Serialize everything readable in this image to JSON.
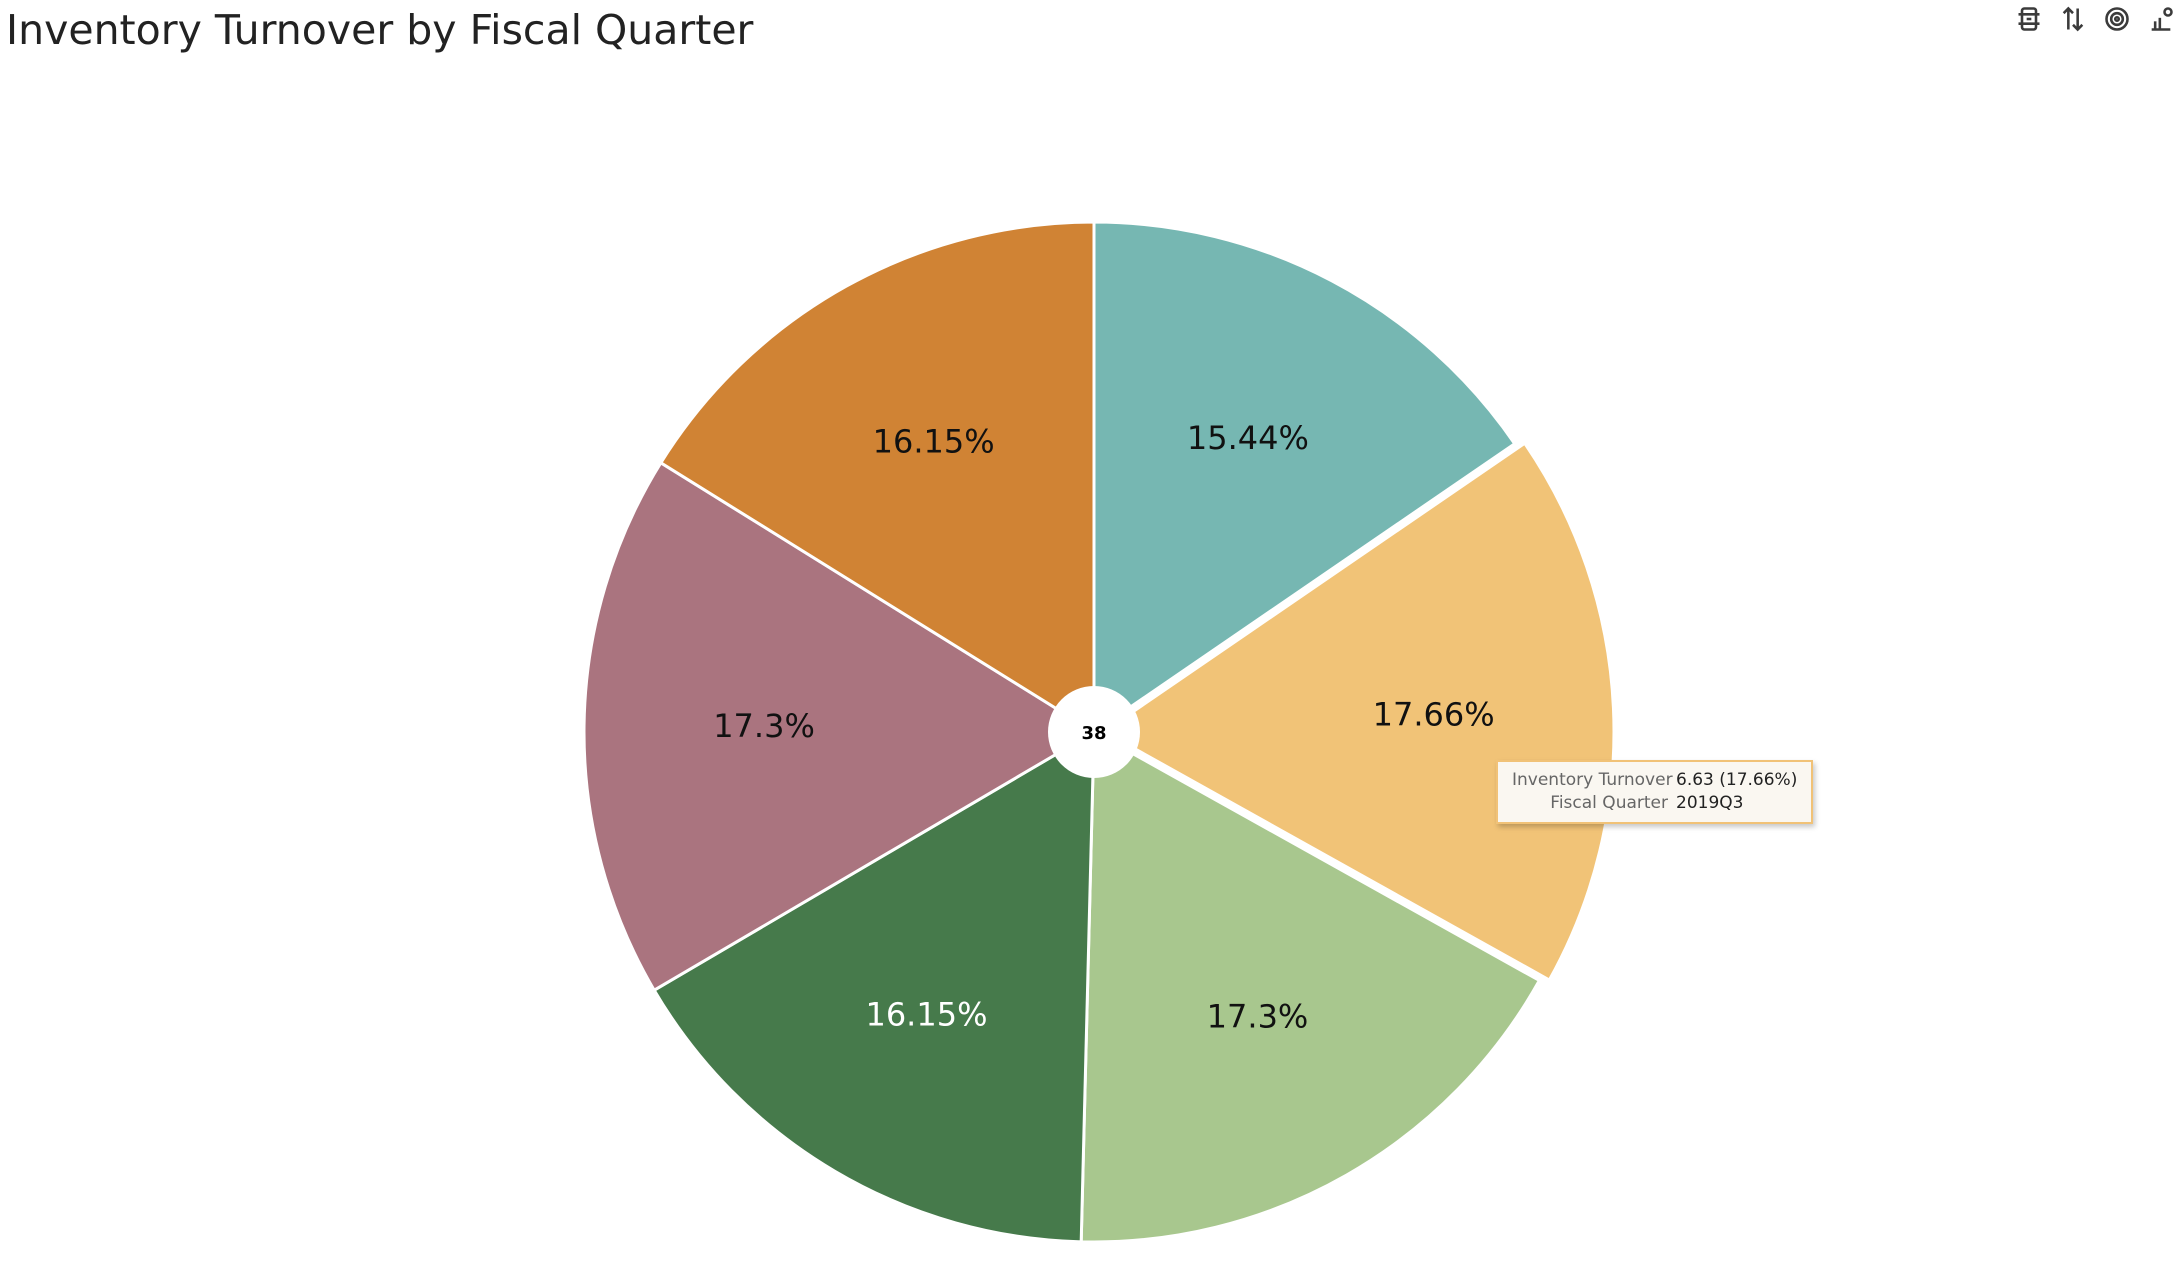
{
  "title": "Inventory Turnover by Fiscal Quarter",
  "toolbar": {
    "buttons": [
      {
        "name": "filter-icon"
      },
      {
        "name": "sort-icon"
      },
      {
        "name": "target-icon"
      },
      {
        "name": "chart-settings-icon"
      }
    ]
  },
  "chart_data": {
    "type": "pie",
    "center_label": "38",
    "slices": [
      {
        "label": "15.44%",
        "value": 15.44,
        "color": "#76b7b2",
        "text_color": "#111111"
      },
      {
        "label": "17.66%",
        "value": 17.66,
        "color": "#f1c377",
        "text_color": "#111111",
        "highlighted": true
      },
      {
        "label": "17.3%",
        "value": 17.3,
        "color": "#a8c78e",
        "text_color": "#111111"
      },
      {
        "label": "16.15%",
        "value": 16.15,
        "color": "#467a4b",
        "text_color": "#ffffff"
      },
      {
        "label": "17.3%",
        "value": 17.3,
        "color": "#aa747f",
        "text_color": "#111111"
      },
      {
        "label": "16.15%",
        "value": 16.15,
        "color": "#d08334",
        "text_color": "#111111"
      }
    ]
  },
  "tooltip": {
    "rows": [
      {
        "key": "Inventory Turnover",
        "value": "6.63 (17.66%)"
      },
      {
        "key": "Fiscal Quarter",
        "value": "2019Q3"
      }
    ]
  }
}
